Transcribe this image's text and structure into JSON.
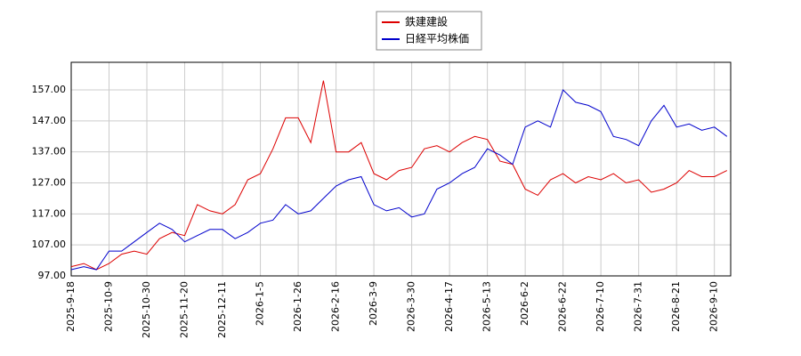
{
  "chart_data": {
    "type": "line",
    "categories": [
      "2025-9-18",
      null,
      null,
      "2025-10-9",
      null,
      null,
      "2025-10-30",
      null,
      null,
      "2025-11-20",
      null,
      null,
      "2025-12-11",
      null,
      null,
      "2026-1-5",
      null,
      null,
      "2026-1-26",
      null,
      null,
      "2026-2-16",
      null,
      null,
      "2026-3-9",
      null,
      null,
      "2026-3-30",
      null,
      null,
      "2026-4-17",
      null,
      null,
      "2026-5-13",
      null,
      null,
      "2026-6-2",
      null,
      null,
      "2026-6-22",
      null,
      null,
      "2026-7-10",
      null,
      null,
      "2026-7-31",
      null,
      null,
      "2026-8-21",
      null,
      null,
      "2026-9-10",
      null
    ],
    "series": [
      {
        "name": "鉄建建設",
        "color": "#dd0000",
        "values": [
          100,
          101,
          99,
          101,
          104,
          105,
          104,
          109,
          111,
          110,
          120,
          118,
          117,
          120,
          128,
          130,
          138,
          148,
          148,
          140,
          160,
          137,
          137,
          140,
          130,
          128,
          131,
          132,
          138,
          139,
          137,
          140,
          142,
          141,
          134,
          133,
          125,
          123,
          128,
          130,
          127,
          129,
          128,
          130,
          127,
          128,
          124,
          125,
          127,
          131,
          129,
          129,
          131
        ]
      },
      {
        "name": "日経平均株価",
        "color": "#0000cc",
        "values": [
          99,
          100,
          99,
          105,
          105,
          108,
          111,
          114,
          112,
          108,
          110,
          112,
          112,
          109,
          111,
          114,
          115,
          120,
          117,
          118,
          122,
          126,
          128,
          129,
          120,
          118,
          119,
          116,
          117,
          125,
          127,
          130,
          132,
          138,
          136,
          133,
          145,
          147,
          145,
          157,
          153,
          152,
          150,
          142,
          141,
          139,
          147,
          152,
          145,
          146,
          144,
          145,
          142
        ]
      }
    ],
    "ylim": [
      97,
      165.9
    ],
    "yticks": [
      {
        "value": 97,
        "label": "97.00"
      },
      {
        "value": 107,
        "label": "107.00"
      },
      {
        "value": 117,
        "label": "117.00"
      },
      {
        "value": 127,
        "label": "127.00"
      },
      {
        "value": 137,
        "label": "137.00"
      },
      {
        "value": 147,
        "label": "147.00"
      },
      {
        "value": 157,
        "label": "157.00"
      }
    ],
    "grid": true
  }
}
